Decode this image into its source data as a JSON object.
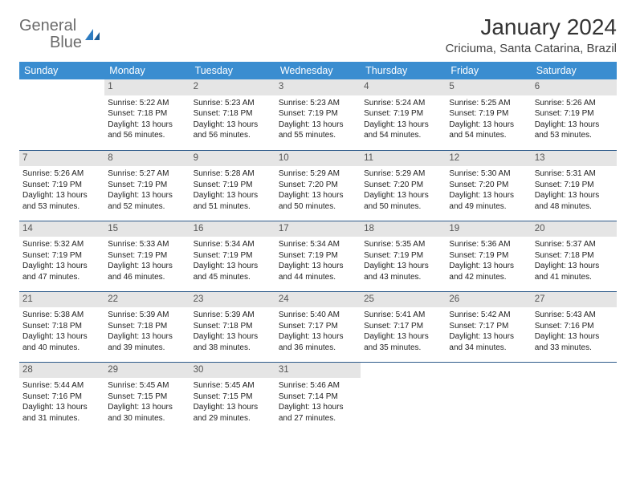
{
  "logo": {
    "text1": "General",
    "text2": "Blue"
  },
  "title": "January 2024",
  "location": "Criciuma, Santa Catarina, Brazil",
  "colors": {
    "header_bg": "#3a8dd0",
    "header_fg": "#ffffff",
    "daynum_bg": "#e5e5e5",
    "row_border": "#2d5a8a",
    "logo_gray": "#6b6b6b",
    "logo_blue": "#2d7cc1"
  },
  "weekdays": [
    "Sunday",
    "Monday",
    "Tuesday",
    "Wednesday",
    "Thursday",
    "Friday",
    "Saturday"
  ],
  "start_offset": 1,
  "days": [
    {
      "n": "1",
      "sunrise": "5:22 AM",
      "sunset": "7:18 PM",
      "dl1": "13 hours",
      "dl2": "and 56 minutes."
    },
    {
      "n": "2",
      "sunrise": "5:23 AM",
      "sunset": "7:18 PM",
      "dl1": "13 hours",
      "dl2": "and 56 minutes."
    },
    {
      "n": "3",
      "sunrise": "5:23 AM",
      "sunset": "7:19 PM",
      "dl1": "13 hours",
      "dl2": "and 55 minutes."
    },
    {
      "n": "4",
      "sunrise": "5:24 AM",
      "sunset": "7:19 PM",
      "dl1": "13 hours",
      "dl2": "and 54 minutes."
    },
    {
      "n": "5",
      "sunrise": "5:25 AM",
      "sunset": "7:19 PM",
      "dl1": "13 hours",
      "dl2": "and 54 minutes."
    },
    {
      "n": "6",
      "sunrise": "5:26 AM",
      "sunset": "7:19 PM",
      "dl1": "13 hours",
      "dl2": "and 53 minutes."
    },
    {
      "n": "7",
      "sunrise": "5:26 AM",
      "sunset": "7:19 PM",
      "dl1": "13 hours",
      "dl2": "and 53 minutes."
    },
    {
      "n": "8",
      "sunrise": "5:27 AM",
      "sunset": "7:19 PM",
      "dl1": "13 hours",
      "dl2": "and 52 minutes."
    },
    {
      "n": "9",
      "sunrise": "5:28 AM",
      "sunset": "7:19 PM",
      "dl1": "13 hours",
      "dl2": "and 51 minutes."
    },
    {
      "n": "10",
      "sunrise": "5:29 AM",
      "sunset": "7:20 PM",
      "dl1": "13 hours",
      "dl2": "and 50 minutes."
    },
    {
      "n": "11",
      "sunrise": "5:29 AM",
      "sunset": "7:20 PM",
      "dl1": "13 hours",
      "dl2": "and 50 minutes."
    },
    {
      "n": "12",
      "sunrise": "5:30 AM",
      "sunset": "7:20 PM",
      "dl1": "13 hours",
      "dl2": "and 49 minutes."
    },
    {
      "n": "13",
      "sunrise": "5:31 AM",
      "sunset": "7:19 PM",
      "dl1": "13 hours",
      "dl2": "and 48 minutes."
    },
    {
      "n": "14",
      "sunrise": "5:32 AM",
      "sunset": "7:19 PM",
      "dl1": "13 hours",
      "dl2": "and 47 minutes."
    },
    {
      "n": "15",
      "sunrise": "5:33 AM",
      "sunset": "7:19 PM",
      "dl1": "13 hours",
      "dl2": "and 46 minutes."
    },
    {
      "n": "16",
      "sunrise": "5:34 AM",
      "sunset": "7:19 PM",
      "dl1": "13 hours",
      "dl2": "and 45 minutes."
    },
    {
      "n": "17",
      "sunrise": "5:34 AM",
      "sunset": "7:19 PM",
      "dl1": "13 hours",
      "dl2": "and 44 minutes."
    },
    {
      "n": "18",
      "sunrise": "5:35 AM",
      "sunset": "7:19 PM",
      "dl1": "13 hours",
      "dl2": "and 43 minutes."
    },
    {
      "n": "19",
      "sunrise": "5:36 AM",
      "sunset": "7:19 PM",
      "dl1": "13 hours",
      "dl2": "and 42 minutes."
    },
    {
      "n": "20",
      "sunrise": "5:37 AM",
      "sunset": "7:18 PM",
      "dl1": "13 hours",
      "dl2": "and 41 minutes."
    },
    {
      "n": "21",
      "sunrise": "5:38 AM",
      "sunset": "7:18 PM",
      "dl1": "13 hours",
      "dl2": "and 40 minutes."
    },
    {
      "n": "22",
      "sunrise": "5:39 AM",
      "sunset": "7:18 PM",
      "dl1": "13 hours",
      "dl2": "and 39 minutes."
    },
    {
      "n": "23",
      "sunrise": "5:39 AM",
      "sunset": "7:18 PM",
      "dl1": "13 hours",
      "dl2": "and 38 minutes."
    },
    {
      "n": "24",
      "sunrise": "5:40 AM",
      "sunset": "7:17 PM",
      "dl1": "13 hours",
      "dl2": "and 36 minutes."
    },
    {
      "n": "25",
      "sunrise": "5:41 AM",
      "sunset": "7:17 PM",
      "dl1": "13 hours",
      "dl2": "and 35 minutes."
    },
    {
      "n": "26",
      "sunrise": "5:42 AM",
      "sunset": "7:17 PM",
      "dl1": "13 hours",
      "dl2": "and 34 minutes."
    },
    {
      "n": "27",
      "sunrise": "5:43 AM",
      "sunset": "7:16 PM",
      "dl1": "13 hours",
      "dl2": "and 33 minutes."
    },
    {
      "n": "28",
      "sunrise": "5:44 AM",
      "sunset": "7:16 PM",
      "dl1": "13 hours",
      "dl2": "and 31 minutes."
    },
    {
      "n": "29",
      "sunrise": "5:45 AM",
      "sunset": "7:15 PM",
      "dl1": "13 hours",
      "dl2": "and 30 minutes."
    },
    {
      "n": "30",
      "sunrise": "5:45 AM",
      "sunset": "7:15 PM",
      "dl1": "13 hours",
      "dl2": "and 29 minutes."
    },
    {
      "n": "31",
      "sunrise": "5:46 AM",
      "sunset": "7:14 PM",
      "dl1": "13 hours",
      "dl2": "and 27 minutes."
    }
  ],
  "labels": {
    "sunrise_prefix": "Sunrise: ",
    "sunset_prefix": "Sunset: ",
    "daylight_prefix": "Daylight: "
  }
}
